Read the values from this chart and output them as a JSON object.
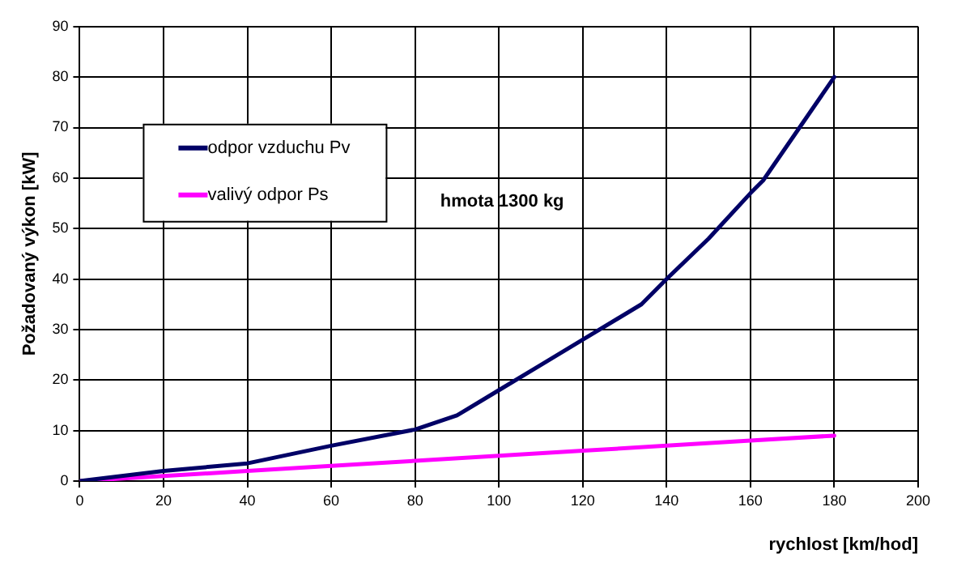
{
  "chart_data": {
    "type": "line",
    "xlabel": "rychlost [km/hod]",
    "ylabel": "Požadovaný výkon [kW]",
    "annotations": [
      "hmota 1300 kg"
    ],
    "xlim": [
      0,
      200
    ],
    "xticks": [
      0,
      20,
      40,
      60,
      80,
      100,
      120,
      140,
      160,
      180,
      200
    ],
    "ylim": [
      0,
      90
    ],
    "yticks": [
      0,
      10,
      20,
      30,
      40,
      50,
      60,
      70,
      80,
      90
    ],
    "grid": true,
    "legend": "top left",
    "marker": "none",
    "line_style": "solid",
    "series": [
      {
        "name": "odpor vzduchu Pv",
        "color": "#000066",
        "x": [
          0,
          20,
          40,
          60,
          80,
          90,
          100,
          110,
          120,
          134,
          140,
          150,
          160,
          163,
          180
        ],
        "values": [
          0,
          2,
          3.5,
          7,
          10.2,
          13,
          18,
          23,
          28,
          35,
          40,
          48,
          57,
          59.5,
          80
        ]
      },
      {
        "name": "valivý odpor Ps",
        "color": "#ff00ff",
        "x": [
          0,
          20,
          40,
          60,
          80,
          100,
          120,
          140,
          160,
          180
        ],
        "values": [
          0,
          1,
          2,
          3,
          4,
          5,
          6,
          7,
          8,
          9
        ]
      }
    ]
  }
}
